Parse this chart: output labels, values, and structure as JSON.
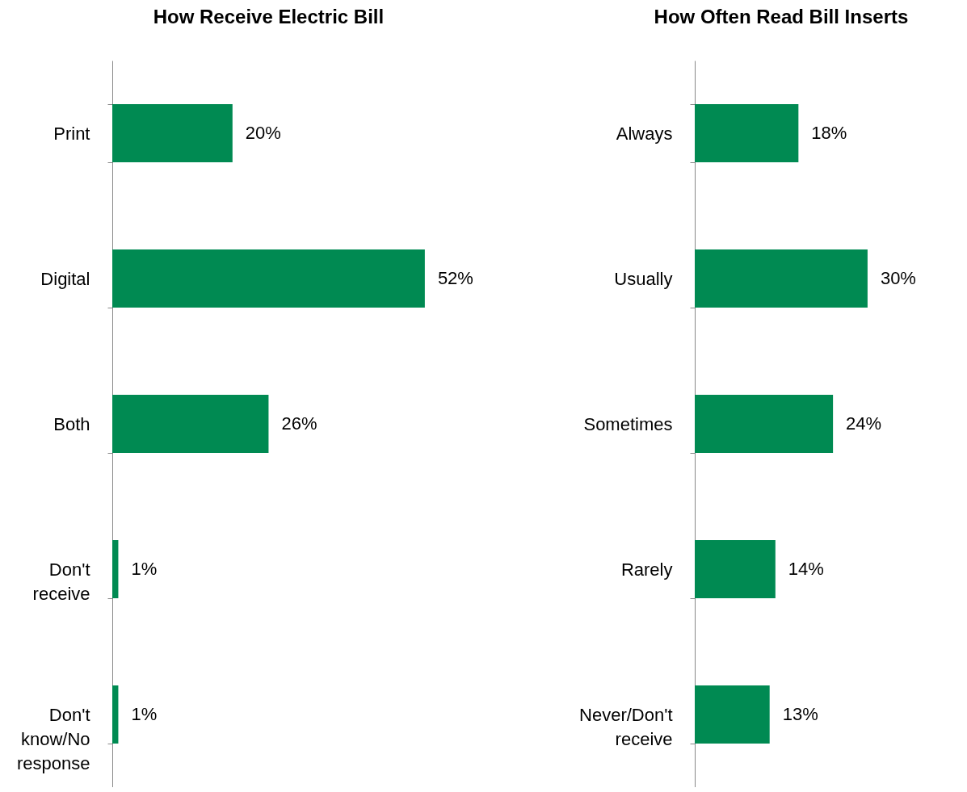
{
  "chart_data": [
    {
      "type": "bar",
      "orientation": "horizontal",
      "title": "How Receive Electric Bill",
      "categories": [
        "Print",
        "Digital",
        "Both",
        "Don't receive",
        "Don't know/No response"
      ],
      "values": [
        20,
        52,
        26,
        1,
        1
      ],
      "value_labels": [
        "20%",
        "52%",
        "26%",
        "1%",
        "1%"
      ],
      "color": "#008a52"
    },
    {
      "type": "bar",
      "orientation": "horizontal",
      "title": "How Often Read Bill Inserts",
      "categories": [
        "Always",
        "Usually",
        "Sometimes",
        "Rarely",
        "Never/Don't receive"
      ],
      "values": [
        18,
        30,
        24,
        14,
        13
      ],
      "value_labels": [
        "18%",
        "30%",
        "24%",
        "14%",
        "13%"
      ],
      "color": "#008a52"
    }
  ]
}
